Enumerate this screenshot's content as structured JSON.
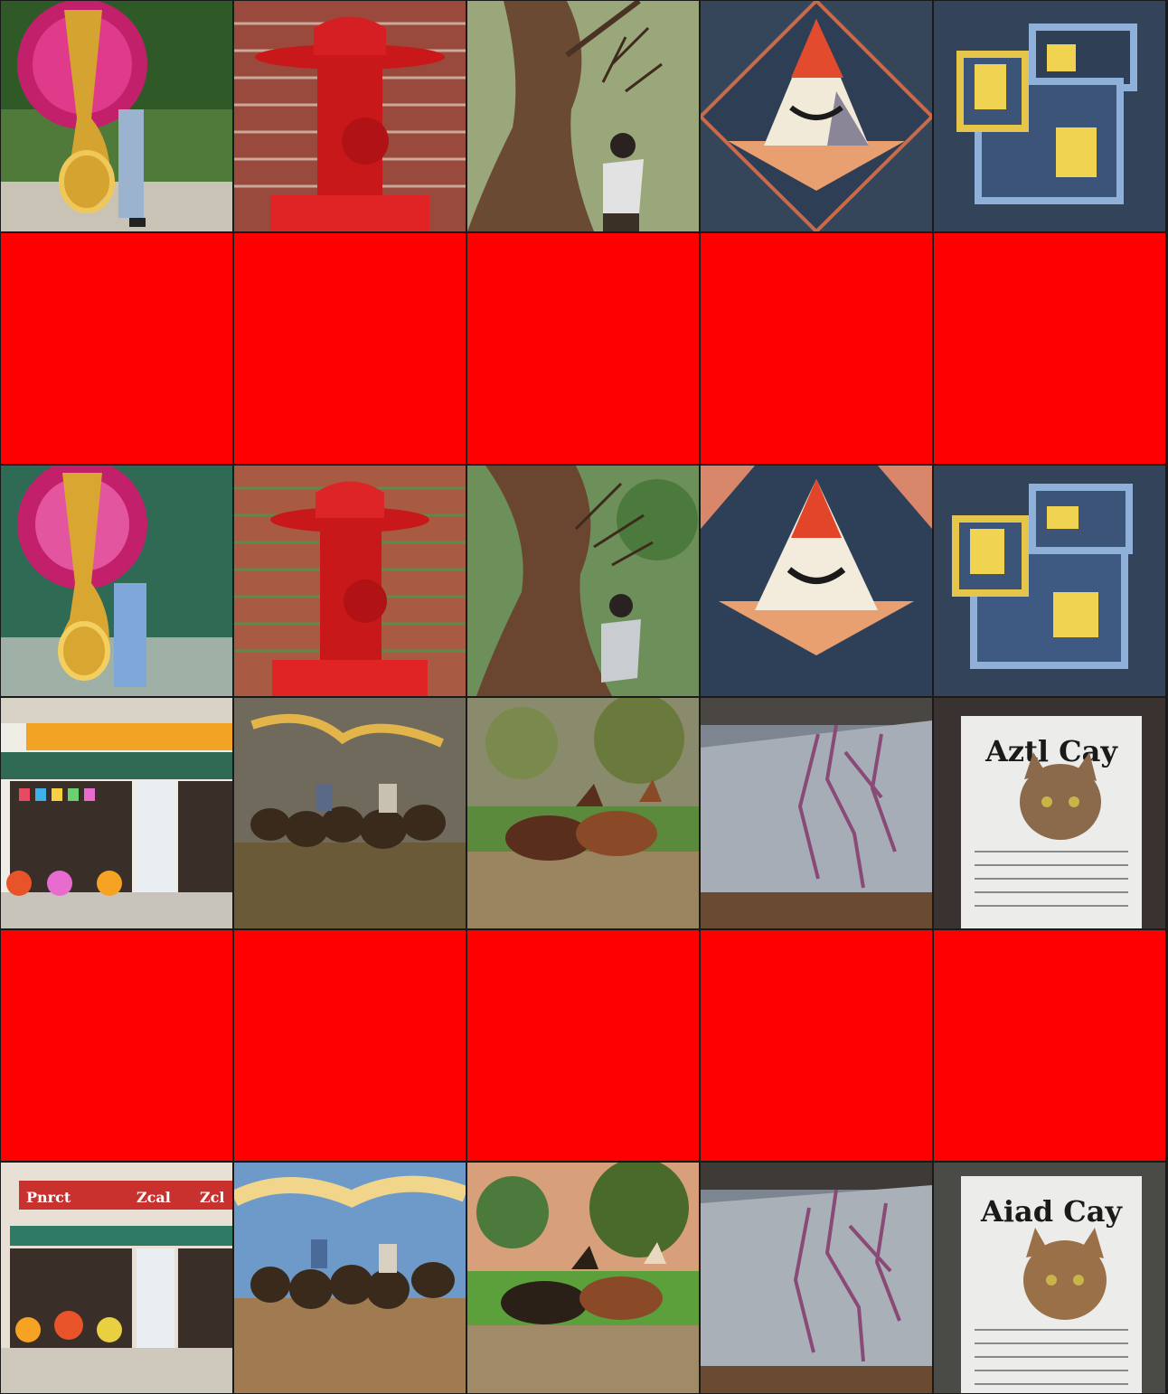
{
  "colors": {
    "placeholder": "#ff0000",
    "gridline": "#1a1a1a"
  },
  "rows": [
    {
      "kind": "images",
      "tiles": [
        {
          "subject": "tuba-with-flowers"
        },
        {
          "subject": "fire-hydrant-brick-wall"
        },
        {
          "subject": "person-trimming-tree"
        },
        {
          "subject": "geometric-triangle-smile"
        },
        {
          "subject": "blue-trays-yellow-blocks"
        }
      ]
    },
    {
      "kind": "placeholders",
      "tiles": [
        {},
        {},
        {},
        {},
        {}
      ]
    },
    {
      "kind": "images",
      "tiles": [
        {
          "subject": "tuba-with-flowers"
        },
        {
          "subject": "fire-hydrant-brick-wall"
        },
        {
          "subject": "person-trimming-tree"
        },
        {
          "subject": "geometric-triangle-smile"
        },
        {
          "subject": "blue-trays-yellow-blocks"
        }
      ]
    },
    {
      "kind": "images",
      "tiles": [
        {
          "subject": "storefront"
        },
        {
          "subject": "cowboys-buffalo-herd"
        },
        {
          "subject": "running-horses"
        },
        {
          "subject": "cracked-wall"
        },
        {
          "subject": "cat-newspaper",
          "text": "Aztl Cay"
        }
      ]
    },
    {
      "kind": "placeholders",
      "tiles": [
        {},
        {},
        {},
        {},
        {}
      ]
    },
    {
      "kind": "images",
      "tiles": [
        {
          "subject": "storefront",
          "sign_left": "Pnrct",
          "sign_mid": "Zcal",
          "sign_right": "Zcl"
        },
        {
          "subject": "cowboys-buffalo-herd"
        },
        {
          "subject": "running-horses"
        },
        {
          "subject": "cracked-wall"
        },
        {
          "subject": "cat-newspaper",
          "text": "Aiad Cay"
        }
      ]
    }
  ]
}
